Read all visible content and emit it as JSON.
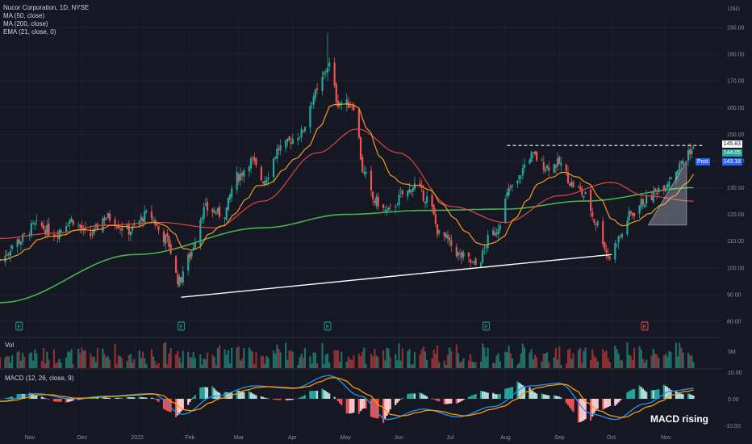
{
  "header": {
    "title": "Nucor Corporation, 1D, NYSE",
    "indicators": [
      "MA (50, close)",
      "MA (200, close)",
      "EMA (21, close, 0)"
    ],
    "currency": "USD"
  },
  "volume_panel": {
    "label": "Vol",
    "axis_label": "5M"
  },
  "macd_panel": {
    "label": "MACD (12, 26, close, 9)",
    "ticks": [
      "10.00",
      "0.00",
      "-10.00"
    ]
  },
  "annotation": "MACD rising",
  "badges": {
    "resistance": "145.83",
    "last": "144.05",
    "post_label": "Post",
    "post": "143.18"
  },
  "colors": {
    "up": "#26a69a",
    "down": "#ef5350",
    "ma50": "#e04545",
    "ma200": "#4caf50",
    "ema21": "#f59a23",
    "bg": "#151823"
  },
  "earnings_markers": [
    {
      "date": "Oct 26",
      "label": "E",
      "color": "#26a69a"
    },
    {
      "date": "Jan 27",
      "label": "E",
      "color": "#26a69a"
    },
    {
      "date": "Apr 21",
      "label": "E",
      "color": "#26a69a"
    },
    {
      "date": "Jul 21",
      "label": "E",
      "color": "#26a69a"
    },
    {
      "date": "Oct 20",
      "label": "E",
      "color": "#ef5350"
    }
  ],
  "chart_data": {
    "type": "candlestick",
    "title": "Nucor Corporation, 1D, NYSE",
    "ylim": [
      80,
      195
    ],
    "y_ticks": [
      80,
      90,
      100,
      110,
      120,
      130,
      140,
      150,
      160,
      170,
      180,
      190
    ],
    "x_ticks": [
      "Nov",
      "Dec",
      "2022",
      "Feb",
      "Mar",
      "Apr",
      "May",
      "Jun",
      "Jul",
      "Aug",
      "Sep",
      "Oct",
      "Nov"
    ],
    "price_anchors": [
      [
        "Oct 15",
        103
      ],
      [
        "Oct 25",
        110
      ],
      [
        "Nov 5",
        116
      ],
      [
        "Nov 15",
        113
      ],
      [
        "Nov 25",
        118
      ],
      [
        "Dec 5",
        112
      ],
      [
        "Dec 15",
        119
      ],
      [
        "Dec 28",
        114
      ],
      [
        "Jan 8",
        120
      ],
      [
        "Jan 18",
        111
      ],
      [
        "Jan 26",
        95
      ],
      [
        "Jan 30",
        103
      ],
      [
        "Feb 10",
        122
      ],
      [
        "Feb 20",
        120
      ],
      [
        "Feb 28",
        134
      ],
      [
        "Mar 8",
        140
      ],
      [
        "Mar 15",
        133
      ],
      [
        "Mar 25",
        145
      ],
      [
        "Apr 5",
        150
      ],
      [
        "Apr 14",
        165
      ],
      [
        "Apr 22",
        176
      ],
      [
        "Apr 27",
        162
      ],
      [
        "May 6",
        161
      ],
      [
        "May 12",
        135
      ],
      [
        "May 18",
        125
      ],
      [
        "May 25",
        121
      ],
      [
        "Jun 5",
        128
      ],
      [
        "Jun 10",
        131
      ],
      [
        "Jun 17",
        126
      ],
      [
        "Jun 25",
        112
      ],
      [
        "Jul 8",
        104
      ],
      [
        "Jul 15",
        101
      ],
      [
        "Jul 25",
        113
      ],
      [
        "Aug 5",
        130
      ],
      [
        "Aug 16",
        142
      ],
      [
        "Aug 25",
        138
      ],
      [
        "Sep 1",
        139
      ],
      [
        "Sep 9",
        131
      ],
      [
        "Sep 16",
        127
      ],
      [
        "Sep 22",
        117
      ],
      [
        "Sep 30",
        104
      ],
      [
        "Oct 5",
        111
      ],
      [
        "Oct 12",
        120
      ],
      [
        "Oct 20",
        125
      ],
      [
        "Oct 31",
        131
      ],
      [
        "Nov 7",
        137
      ],
      [
        "Nov 15",
        144
      ]
    ],
    "ma50_anchors": [
      [
        "Oct 15",
        111
      ],
      [
        "Nov 15",
        113
      ],
      [
        "Dec 15",
        116
      ],
      [
        "Jan 15",
        117
      ],
      [
        "Feb 15",
        115
      ],
      [
        "Mar 15",
        125
      ],
      [
        "Apr 15",
        143
      ],
      [
        "May 8",
        152
      ],
      [
        "Jun 1",
        143
      ],
      [
        "Jul 1",
        123
      ],
      [
        "Aug 1",
        117
      ],
      [
        "Sep 1",
        127
      ],
      [
        "Oct 1",
        132
      ],
      [
        "Oct 20",
        127
      ],
      [
        "Nov 17",
        125
      ]
    ],
    "ma200_anchors": [
      [
        "Oct 15",
        87
      ],
      [
        "Jan 1",
        105
      ],
      [
        "Mar 15",
        115
      ],
      [
        "May 1",
        120
      ],
      [
        "Jun 15",
        121.5
      ],
      [
        "Aug 1",
        122
      ],
      [
        "Sep 15",
        125
      ],
      [
        "Nov 17",
        130
      ]
    ],
    "trendline": {
      "from": [
        "Jan 27",
        89
      ],
      "to": [
        "Oct 1",
        105
      ]
    },
    "resistance": {
      "from": [
        "Aug 2",
        145.83
      ],
      "to": [
        "Nov 22",
        145.83
      ]
    },
    "triangle": [
      [
        "Oct 22",
        116
      ],
      [
        "Nov 13",
        140
      ],
      [
        "Nov 13",
        116
      ]
    ],
    "macd_anchors": [
      [
        "Oct 15",
        -1
      ],
      [
        "Nov 5",
        2
      ],
      [
        "Nov 25",
        0
      ],
      [
        "Dec 15",
        1
      ],
      [
        "Jan 10",
        2
      ],
      [
        "Jan 28",
        -6
      ],
      [
        "Feb 15",
        1
      ],
      [
        "Mar 10",
        5
      ],
      [
        "Apr 1",
        4
      ],
      [
        "Apr 22",
        9
      ],
      [
        "May 10",
        1
      ],
      [
        "May 25",
        -8
      ],
      [
        "Jun 15",
        -4
      ],
      [
        "Jul 5",
        -7
      ],
      [
        "Jul 25",
        -3
      ],
      [
        "Aug 15",
        5
      ],
      [
        "Sep 1",
        6
      ],
      [
        "Sep 20",
        -6
      ],
      [
        "Oct 3",
        -8
      ],
      [
        "Oct 20",
        -2
      ],
      [
        "Nov 5",
        3
      ],
      [
        "Nov 17",
        4
      ]
    ]
  }
}
